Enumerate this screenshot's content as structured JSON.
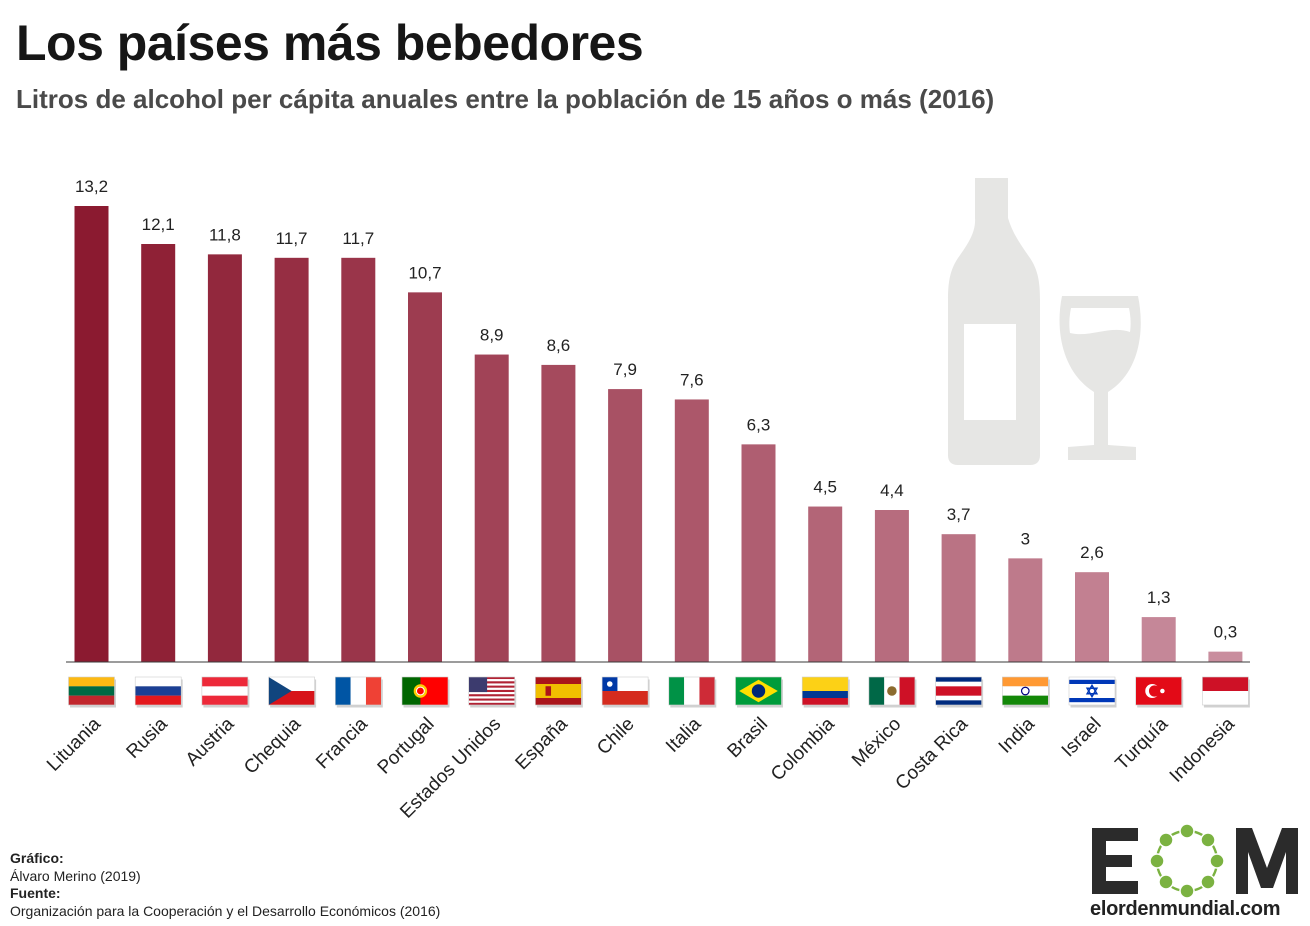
{
  "header": {
    "title": "Los países más bebedores",
    "subtitle": "Litros de alcohol per cápita anuales entre la población de 15 años o más (2016)"
  },
  "chart_data": {
    "type": "bar",
    "categories": [
      "Lituania",
      "Rusia",
      "Austria",
      "Chequia",
      "Francia",
      "Portugal",
      "Estados Unidos",
      "España",
      "Chile",
      "Italia",
      "Brasil",
      "Colombia",
      "México",
      "Costa Rica",
      "India",
      "Israel",
      "Turquía",
      "Indonesia"
    ],
    "values": [
      13.2,
      12.1,
      11.8,
      11.7,
      11.7,
      10.7,
      8.9,
      8.6,
      7.9,
      7.6,
      6.3,
      4.5,
      4.4,
      3.7,
      3.0,
      2.6,
      1.3,
      0.3
    ],
    "value_labels": [
      "13,2",
      "12,1",
      "11,8",
      "11,7",
      "11,7",
      "10,7",
      "8,9",
      "8,6",
      "7,9",
      "7,6",
      "6,3",
      "4,5",
      "4,4",
      "3,7",
      "3",
      "2,6",
      "1,3",
      "0,3"
    ],
    "flag_icons": [
      "flag-lithuania-icon",
      "flag-russia-icon",
      "flag-austria-icon",
      "flag-czechia-icon",
      "flag-france-icon",
      "flag-portugal-icon",
      "flag-usa-icon",
      "flag-spain-icon",
      "flag-chile-icon",
      "flag-italy-icon",
      "flag-brazil-icon",
      "flag-colombia-icon",
      "flag-mexico-icon",
      "flag-costa-rica-icon",
      "flag-india-icon",
      "flag-israel-icon",
      "flag-turkey-icon",
      "flag-indonesia-icon"
    ],
    "ylim": [
      0,
      13.2
    ],
    "grid": false,
    "colors": {
      "darkest": "#8b1a30",
      "lightest": "#c98e9e"
    }
  },
  "decoration": {
    "icons": [
      "wine-bottle-icon",
      "wine-glass-icon"
    ],
    "color": "#e6e6e4"
  },
  "credits": {
    "grafico_label": "Gráfico:",
    "grafico_value": "Álvaro Merino (2019)",
    "fuente_label": "Fuente:",
    "fuente_value": "Organización para la Cooperación y el Desarrollo Económicos (2016)"
  },
  "logo": {
    "letters": "EOM",
    "site": "elordenmundial.com",
    "accent": "#7bb241"
  }
}
